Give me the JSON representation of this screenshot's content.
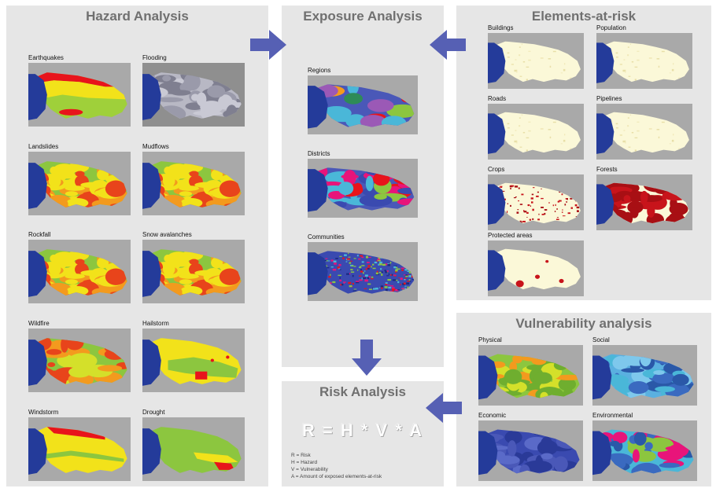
{
  "hazard": {
    "title": "Hazard Analysis",
    "tiles": [
      {
        "label": "Earthquakes",
        "scheme": "earthquake"
      },
      {
        "label": "Flooding",
        "scheme": "flooding"
      },
      {
        "label": "Landslides",
        "scheme": "landslide"
      },
      {
        "label": "Mudflows",
        "scheme": "landslide"
      },
      {
        "label": "Rockfall",
        "scheme": "landslide"
      },
      {
        "label": "Snow avalanches",
        "scheme": "landslide"
      },
      {
        "label": "Wildfire",
        "scheme": "wildfire"
      },
      {
        "label": "Hailstorm",
        "scheme": "hailstorm"
      },
      {
        "label": "Windstorm",
        "scheme": "windstorm"
      },
      {
        "label": "Drought",
        "scheme": "drought"
      }
    ]
  },
  "exposure": {
    "title": "Exposure Analysis",
    "tiles": [
      {
        "label": "Regions",
        "scheme": "regions"
      },
      {
        "label": "Districts",
        "scheme": "districts"
      },
      {
        "label": "Communities",
        "scheme": "communities"
      }
    ]
  },
  "elements": {
    "title": "Elements-at-risk",
    "tiles": [
      {
        "label": "Buildings",
        "scheme": "cream"
      },
      {
        "label": "Population",
        "scheme": "cream"
      },
      {
        "label": "Roads",
        "scheme": "cream"
      },
      {
        "label": "Pipelines",
        "scheme": "cream"
      },
      {
        "label": "Crops",
        "scheme": "crops"
      },
      {
        "label": "Forests",
        "scheme": "forests"
      },
      {
        "label": "Protected areas",
        "scheme": "protected"
      }
    ]
  },
  "vulnerability": {
    "title": "Vulnerability analysis",
    "tiles": [
      {
        "label": "Physical",
        "scheme": "physical"
      },
      {
        "label": "Social",
        "scheme": "social"
      },
      {
        "label": "Economic",
        "scheme": "economic"
      },
      {
        "label": "Environmental",
        "scheme": "environmental"
      }
    ]
  },
  "risk": {
    "title": "Risk Analysis",
    "formula": "R = H * V * A",
    "legend": [
      "R = Risk",
      "H = Hazard",
      "V = Vulnerability",
      "A = Amount of exposed elements-at-risk"
    ]
  },
  "colors": {
    "panel": "#e6e6e6",
    "title": "#707070",
    "arrow": "#5660b4",
    "sea": "#243b9a",
    "map_bg": "#a9a9a9"
  }
}
